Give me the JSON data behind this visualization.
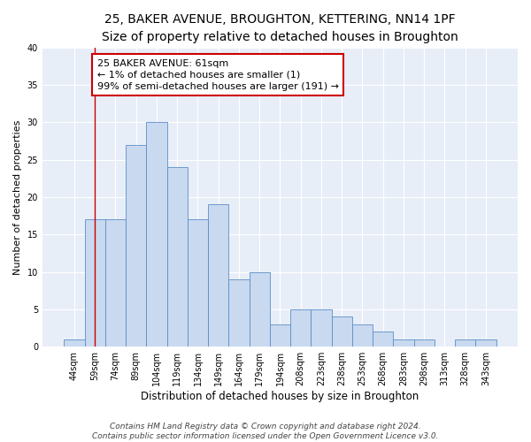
{
  "title": "25, BAKER AVENUE, BROUGHTON, KETTERING, NN14 1PF",
  "subtitle": "Size of property relative to detached houses in Broughton",
  "xlabel": "Distribution of detached houses by size in Broughton",
  "ylabel": "Number of detached properties",
  "categories": [
    "44sqm",
    "59sqm",
    "74sqm",
    "89sqm",
    "104sqm",
    "119sqm",
    "134sqm",
    "149sqm",
    "164sqm",
    "179sqm",
    "194sqm",
    "208sqm",
    "223sqm",
    "238sqm",
    "253sqm",
    "268sqm",
    "283sqm",
    "298sqm",
    "313sqm",
    "328sqm",
    "343sqm"
  ],
  "values": [
    1,
    17,
    17,
    27,
    30,
    24,
    17,
    19,
    9,
    10,
    3,
    5,
    5,
    4,
    3,
    2,
    1,
    1,
    0,
    1,
    1
  ],
  "bar_color": "#c9d9ef",
  "bar_edge_color": "#5a8fc7",
  "annotation_line1": "25 BAKER AVENUE: 61sqm",
  "annotation_line2": "← 1% of detached houses are smaller (1)",
  "annotation_line3": "99% of semi-detached houses are larger (191) →",
  "annotation_box_color": "#ffffff",
  "annotation_box_edge_color": "#cc0000",
  "vline_x": 1,
  "vline_color": "#cc0000",
  "ylim": [
    0,
    40
  ],
  "yticks": [
    0,
    5,
    10,
    15,
    20,
    25,
    30,
    35,
    40
  ],
  "footer_line1": "Contains HM Land Registry data © Crown copyright and database right 2024.",
  "footer_line2": "Contains public sector information licensed under the Open Government Licence v3.0.",
  "bg_color": "#ffffff",
  "plot_bg_color": "#e8eef8",
  "grid_color": "#ffffff",
  "title_fontsize": 10,
  "ylabel_fontsize": 8,
  "xlabel_fontsize": 8.5,
  "tick_fontsize": 7,
  "footer_fontsize": 6.5,
  "annotation_fontsize": 8
}
